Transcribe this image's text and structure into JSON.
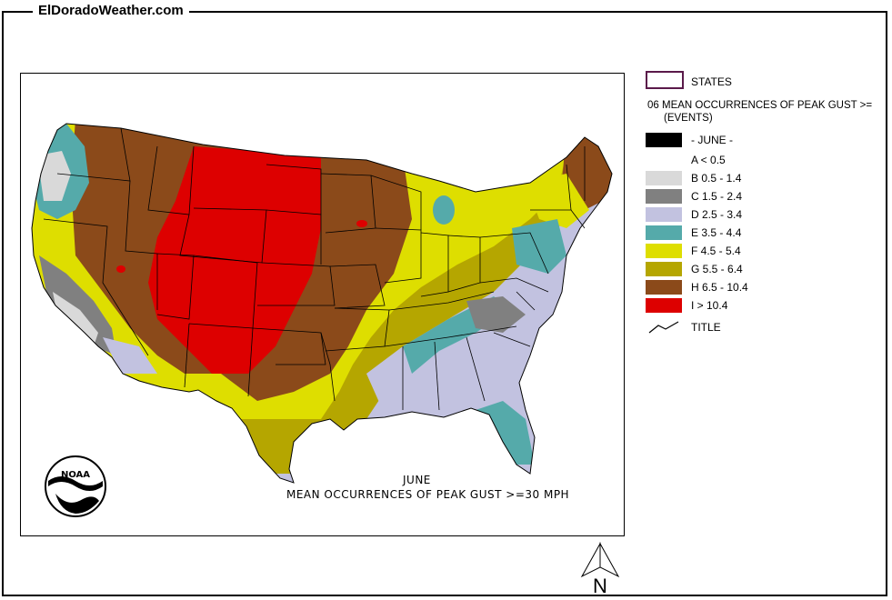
{
  "site_title": "ElDoradoWeather.com",
  "map": {
    "caption_month": "JUNE",
    "caption_description": "MEAN OCCURRENCES OF PEAK GUST >=30 MPH",
    "logo_text": "NOAA"
  },
  "legend": {
    "states_label": "STATES",
    "layer_title": "06 MEAN OCCURRENCES OF PEAK GUST >=",
    "layer_subtitle": "(EVENTS)",
    "month_label": "- JUNE -",
    "classes": [
      {
        "label": "A < 0.5",
        "color": "#ffffff"
      },
      {
        "label": "B 0.5 - 1.4",
        "color": "#d9d9d9"
      },
      {
        "label": "C 1.5 - 2.4",
        "color": "#808080"
      },
      {
        "label": "D 2.5 - 3.4",
        "color": "#c2c2e0"
      },
      {
        "label": "E 3.5 - 4.4",
        "color": "#55aaaa"
      },
      {
        "label": "F 4.5 - 5.4",
        "color": "#dede00"
      },
      {
        "label": "G 5.5 - 6.4",
        "color": "#b5a600"
      },
      {
        "label": "H 6.5 - 10.4",
        "color": "#8b4a1a"
      },
      {
        "label": "I > 10.4",
        "color": "#dd0000"
      }
    ],
    "title_label": "TITLE",
    "month_swatch_color": "#000000"
  },
  "north_arrow_label": "N"
}
